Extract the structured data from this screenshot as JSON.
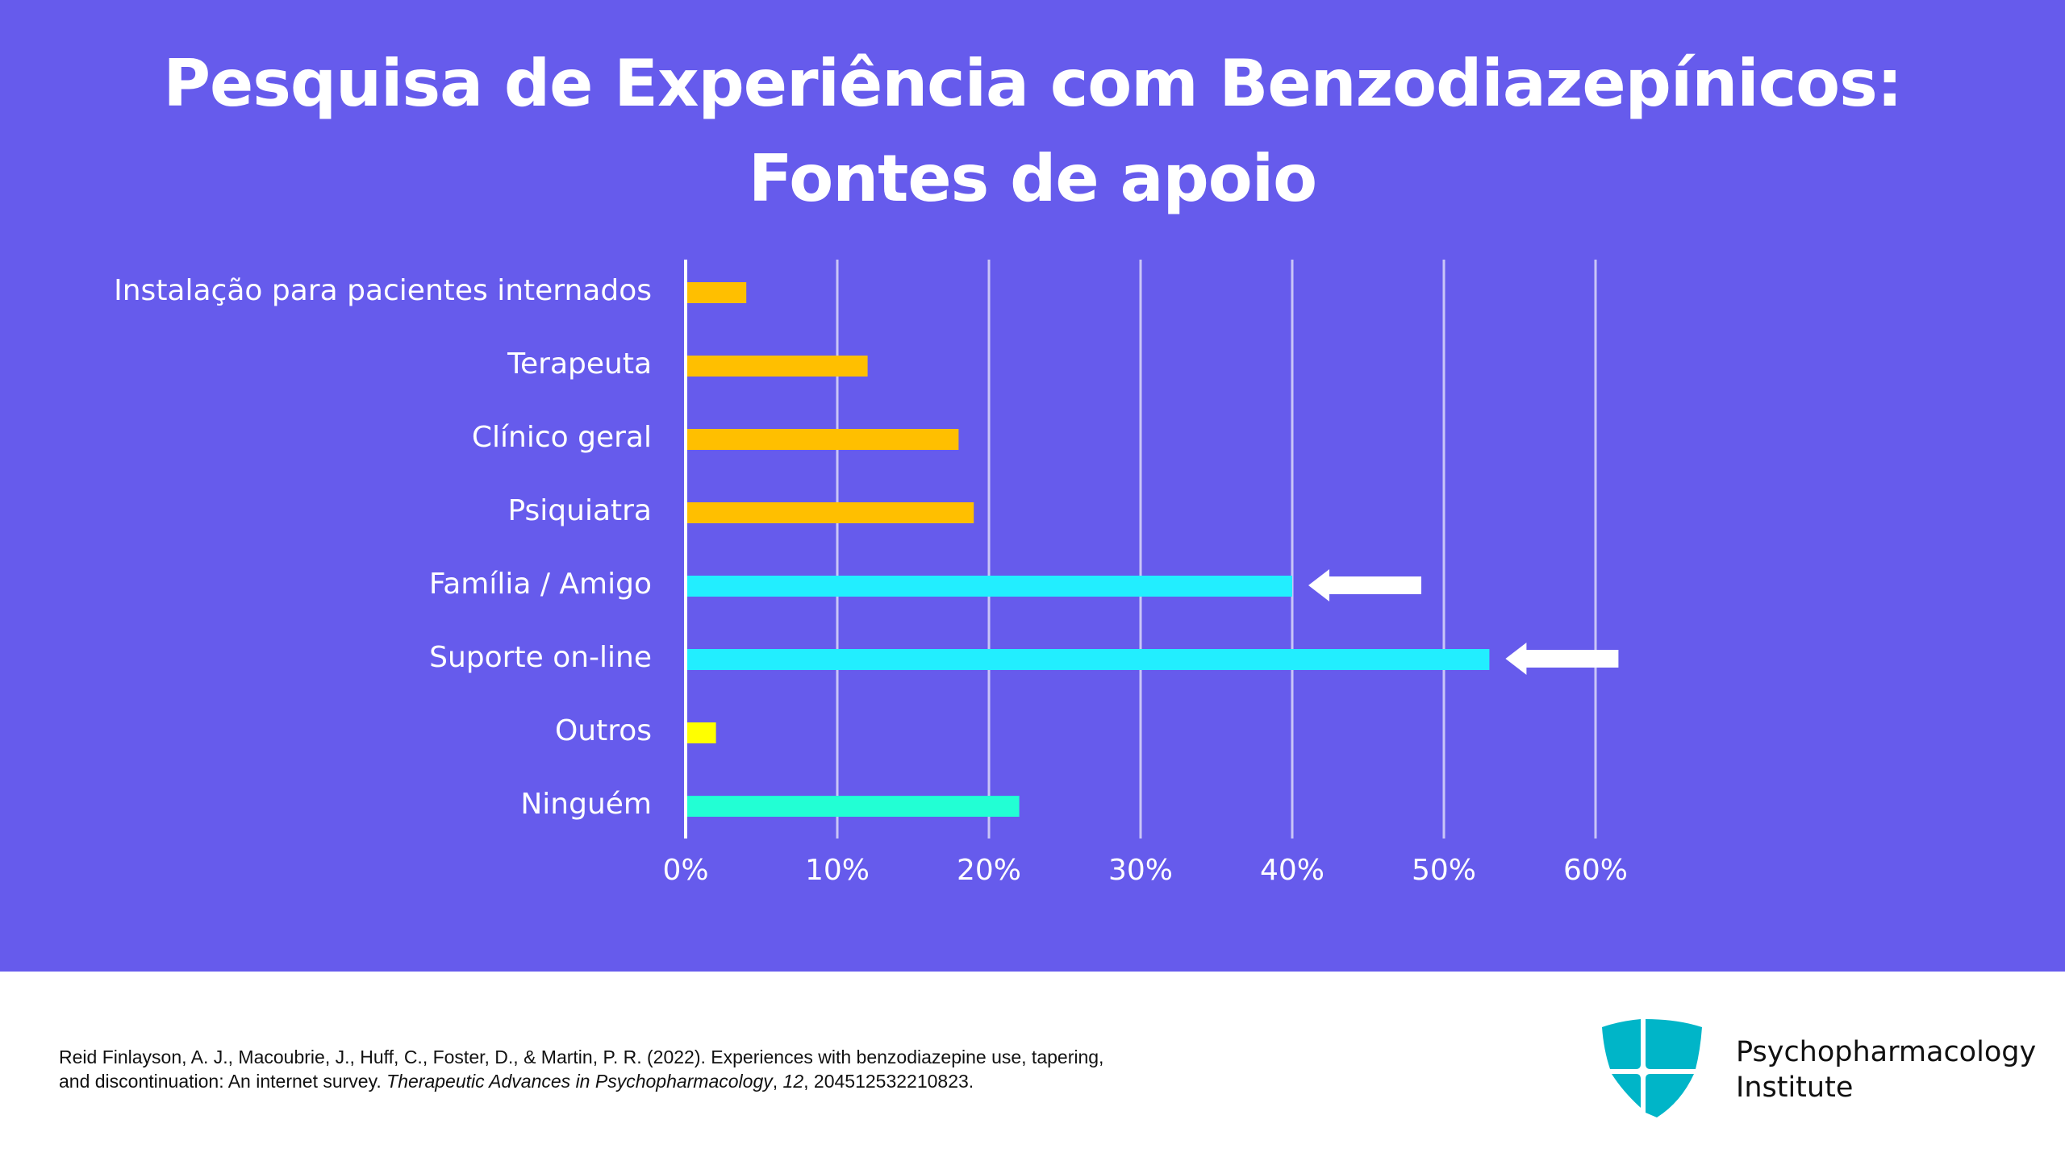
{
  "chart_data": {
    "type": "bar",
    "orientation": "horizontal",
    "title": "Pesquisa de Experiência com Benzodiazepínicos: Fontes de apoio",
    "categories": [
      "Instalação para pacientes internados",
      "Terapeuta",
      "Clínico geral",
      "Psiquiatra",
      "Família / Amigo",
      "Suporte on-line",
      "Outros",
      "Ninguém"
    ],
    "values": [
      4,
      12,
      18,
      19,
      40,
      53,
      2,
      22
    ],
    "unit": "%",
    "colors": [
      "#ffbf00",
      "#ffbf00",
      "#ffbf00",
      "#ffbf00",
      "#22eeff",
      "#22eeff",
      "#ffff00",
      "#22ffd4"
    ],
    "xlim": [
      0,
      60
    ],
    "xticks": [
      "0%",
      "10%",
      "20%",
      "30%",
      "40%",
      "50%",
      "60%"
    ],
    "grid": true,
    "annotations": [
      {
        "type": "arrow",
        "color": "#ffffff",
        "points_to": "Família / Amigo"
      },
      {
        "type": "arrow",
        "color": "#ffffff",
        "points_to": "Suporte on-line"
      }
    ],
    "background": "#665bec"
  },
  "citation": {
    "line1": "Reid Finlayson, A. J., Macoubrie, J., Huff, C., Foster, D., & Martin, P. R. (2022). Experiences with benzodiazepine use, tapering,",
    "line2_pre": "and discontinuation: An internet survey. ",
    "journal": "Therapeutic Advances in Psychopharmacology",
    "sep": ", ",
    "volume": "12",
    "rest": ", 204512532210823."
  },
  "logo": {
    "line1": "Psychopharmacology",
    "line2": "Institute",
    "color": "#00b5c8"
  }
}
